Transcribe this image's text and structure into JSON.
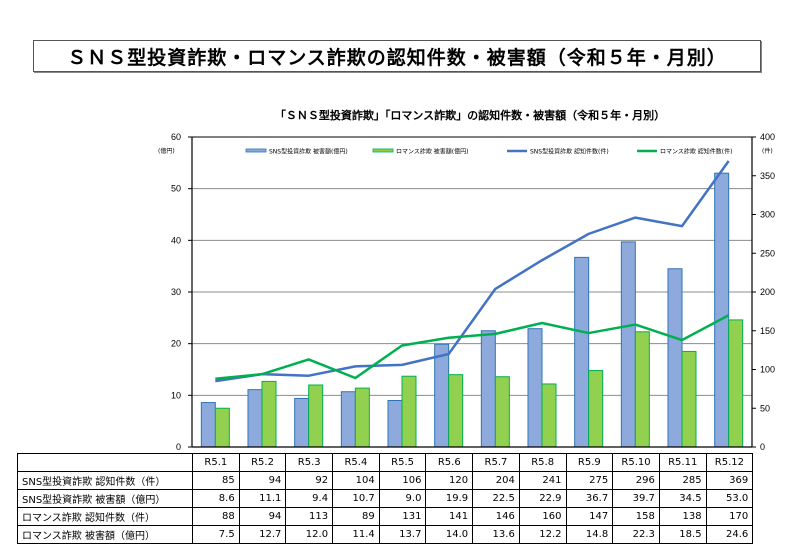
{
  "page": {
    "main_title": "ＳＮＳ型投資詐欺・ロマンス詐欺の認知件数・被害額（令和５年・月別）"
  },
  "chart_data": {
    "type": "bar",
    "title": "「ＳＮＳ型投資詐欺」「ロマンス詐欺」の認知件数・被害額（令和５年・月別）",
    "categories": [
      "R5.1",
      "R5.2",
      "R5.3",
      "R5.4",
      "R5.5",
      "R5.6",
      "R5.7",
      "R5.8",
      "R5.9",
      "R5.10",
      "R5.11",
      "R5.12"
    ],
    "y_left": {
      "label": "(億円)",
      "range": [
        0,
        60
      ],
      "ticks": [
        0,
        10,
        20,
        30,
        40,
        50,
        60
      ]
    },
    "y_right": {
      "label": "(件)",
      "range": [
        0,
        400
      ],
      "ticks": [
        0,
        50,
        100,
        150,
        200,
        250,
        300,
        350,
        400
      ]
    },
    "grid": true,
    "legend_position": "top",
    "series": [
      {
        "name": "SNS型投資詐欺 被害額(億円)",
        "kind": "bar",
        "axis": "left",
        "color": "#8EA9DB",
        "stroke": "#2E75B6",
        "values": [
          8.6,
          11.1,
          9.4,
          10.7,
          9.0,
          19.9,
          22.5,
          22.9,
          36.7,
          39.7,
          34.5,
          53.0
        ]
      },
      {
        "name": "ロマンス詐欺 被害額(億円)",
        "kind": "bar",
        "axis": "left",
        "color": "#92D050",
        "stroke": "#00B050",
        "values": [
          7.5,
          12.7,
          12.0,
          11.4,
          13.7,
          14.0,
          13.6,
          12.2,
          14.8,
          22.3,
          18.5,
          24.6
        ]
      },
      {
        "name": "SNS型投資詐欺 認知件数(件)",
        "kind": "line",
        "axis": "right",
        "color": "#4472C4",
        "values": [
          85,
          94,
          92,
          104,
          106,
          120,
          204,
          241,
          275,
          296,
          285,
          369
        ]
      },
      {
        "name": "ロマンス詐欺 認知件数(件)",
        "kind": "line",
        "axis": "right",
        "color": "#00B050",
        "values": [
          88,
          94,
          113,
          89,
          131,
          141,
          146,
          160,
          147,
          158,
          138,
          170
        ]
      }
    ]
  },
  "table": {
    "header_blank": "",
    "columns": [
      "R5.1",
      "R5.2",
      "R5.3",
      "R5.4",
      "R5.5",
      "R5.6",
      "R5.7",
      "R5.8",
      "R5.9",
      "R5.10",
      "R5.11",
      "R5.12"
    ],
    "rows": [
      {
        "label": "SNS型投資詐欺 認知件数（件）",
        "cells": [
          "85",
          "94",
          "92",
          "104",
          "106",
          "120",
          "204",
          "241",
          "275",
          "296",
          "285",
          "369"
        ]
      },
      {
        "label": "SNS型投資詐欺 被害額（億円）",
        "cells": [
          "8.6",
          "11.1",
          "9.4",
          "10.7",
          "9.0",
          "19.9",
          "22.5",
          "22.9",
          "36.7",
          "39.7",
          "34.5",
          "53.0"
        ]
      },
      {
        "label": "ロマンス詐欺 認知件数（件）",
        "cells": [
          "88",
          "94",
          "113",
          "89",
          "131",
          "141",
          "146",
          "160",
          "147",
          "158",
          "138",
          "170"
        ]
      },
      {
        "label": "ロマンス詐欺 被害額（億円）",
        "cells": [
          "7.5",
          "12.7",
          "12.0",
          "11.4",
          "13.7",
          "14.0",
          "13.6",
          "12.2",
          "14.8",
          "22.3",
          "18.5",
          "24.6"
        ]
      }
    ]
  }
}
